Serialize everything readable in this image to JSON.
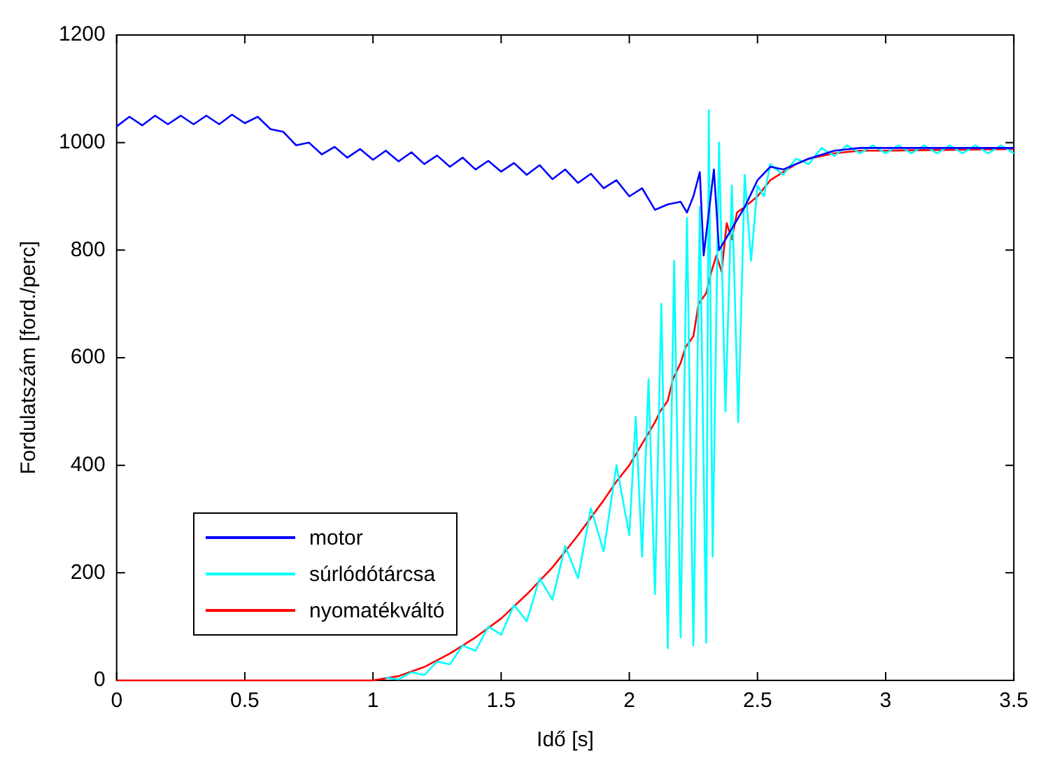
{
  "chart_data": {
    "type": "line",
    "xlabel": "Idő [s]",
    "ylabel": "Fordulatszám [ford./perc]",
    "xlim": [
      0,
      3.5
    ],
    "xticks": [
      0,
      0.5,
      1,
      1.5,
      2,
      2.5,
      3,
      3.5
    ],
    "ylim": [
      0,
      1200
    ],
    "yticks": [
      0,
      200,
      400,
      600,
      800,
      1000,
      1200
    ],
    "grid": false,
    "legend": "bottom left",
    "marker": "none",
    "line_style": "solid",
    "series": [
      {
        "name": "motor",
        "color": "#0000ff",
        "x": [
          0,
          0.05,
          0.1,
          0.15,
          0.2,
          0.25,
          0.3,
          0.35,
          0.4,
          0.45,
          0.5,
          0.55,
          0.6,
          0.65,
          0.7,
          0.75,
          0.8,
          0.85,
          0.9,
          0.95,
          1.0,
          1.05,
          1.1,
          1.15,
          1.2,
          1.25,
          1.3,
          1.35,
          1.4,
          1.45,
          1.5,
          1.55,
          1.6,
          1.65,
          1.7,
          1.75,
          1.8,
          1.85,
          1.9,
          1.95,
          2.0,
          2.05,
          2.1,
          2.15,
          2.2,
          2.225,
          2.25,
          2.275,
          2.29,
          2.31,
          2.33,
          2.35,
          2.4,
          2.45,
          2.5,
          2.55,
          2.6,
          2.7,
          2.8,
          2.9,
          3.0,
          3.5
        ],
        "values": [
          1030,
          1048,
          1032,
          1050,
          1034,
          1050,
          1034,
          1050,
          1034,
          1052,
          1036,
          1048,
          1025,
          1020,
          995,
          1000,
          978,
          992,
          972,
          988,
          968,
          985,
          965,
          982,
          960,
          976,
          955,
          972,
          950,
          966,
          946,
          962,
          940,
          958,
          932,
          950,
          925,
          942,
          915,
          930,
          900,
          915,
          875,
          885,
          890,
          870,
          900,
          945,
          790,
          870,
          950,
          800,
          840,
          880,
          930,
          955,
          950,
          970,
          985,
          990,
          990,
          990
        ]
      },
      {
        "name": "súrlódótárcsa",
        "color": "#00ffff",
        "x": [
          1.05,
          1.1,
          1.15,
          1.2,
          1.25,
          1.3,
          1.35,
          1.4,
          1.45,
          1.5,
          1.55,
          1.6,
          1.65,
          1.7,
          1.75,
          1.8,
          1.85,
          1.9,
          1.95,
          2.0,
          2.025,
          2.05,
          2.075,
          2.1,
          2.125,
          2.15,
          2.175,
          2.2,
          2.225,
          2.25,
          2.275,
          2.3,
          2.31,
          2.325,
          2.35,
          2.375,
          2.4,
          2.425,
          2.45,
          2.475,
          2.5,
          2.525,
          2.55,
          2.6,
          2.65,
          2.7,
          2.75,
          2.8,
          2.85,
          2.9,
          2.95,
          3.0,
          3.05,
          3.1,
          3.15,
          3.2,
          3.25,
          3.3,
          3.35,
          3.4,
          3.45,
          3.5
        ],
        "values": [
          5,
          2,
          15,
          10,
          35,
          30,
          65,
          55,
          100,
          85,
          140,
          110,
          190,
          150,
          250,
          190,
          320,
          240,
          400,
          270,
          490,
          230,
          560,
          160,
          700,
          60,
          780,
          80,
          860,
          65,
          880,
          70,
          1060,
          230,
          1000,
          500,
          920,
          480,
          940,
          780,
          920,
          900,
          960,
          940,
          970,
          960,
          990,
          975,
          995,
          980,
          995,
          980,
          995,
          980,
          995,
          980,
          995,
          980,
          995,
          980,
          995,
          980
        ]
      },
      {
        "name": "nyomatékváltó",
        "color": "#ff0000",
        "x": [
          0,
          0.5,
          1.0,
          1.1,
          1.2,
          1.3,
          1.4,
          1.5,
          1.6,
          1.7,
          1.8,
          1.9,
          1.95,
          2.0,
          2.05,
          2.1,
          2.12,
          2.15,
          2.17,
          2.2,
          2.22,
          2.25,
          2.27,
          2.3,
          2.32,
          2.34,
          2.36,
          2.38,
          2.4,
          2.42,
          2.45,
          2.5,
          2.55,
          2.6,
          2.65,
          2.7,
          2.8,
          2.9,
          3.0,
          3.5
        ],
        "values": [
          0,
          0,
          0,
          8,
          25,
          50,
          80,
          115,
          160,
          210,
          270,
          335,
          370,
          400,
          440,
          480,
          500,
          520,
          560,
          590,
          620,
          640,
          700,
          720,
          760,
          790,
          760,
          850,
          820,
          870,
          880,
          900,
          930,
          945,
          960,
          970,
          980,
          985,
          985,
          988
        ]
      }
    ]
  }
}
